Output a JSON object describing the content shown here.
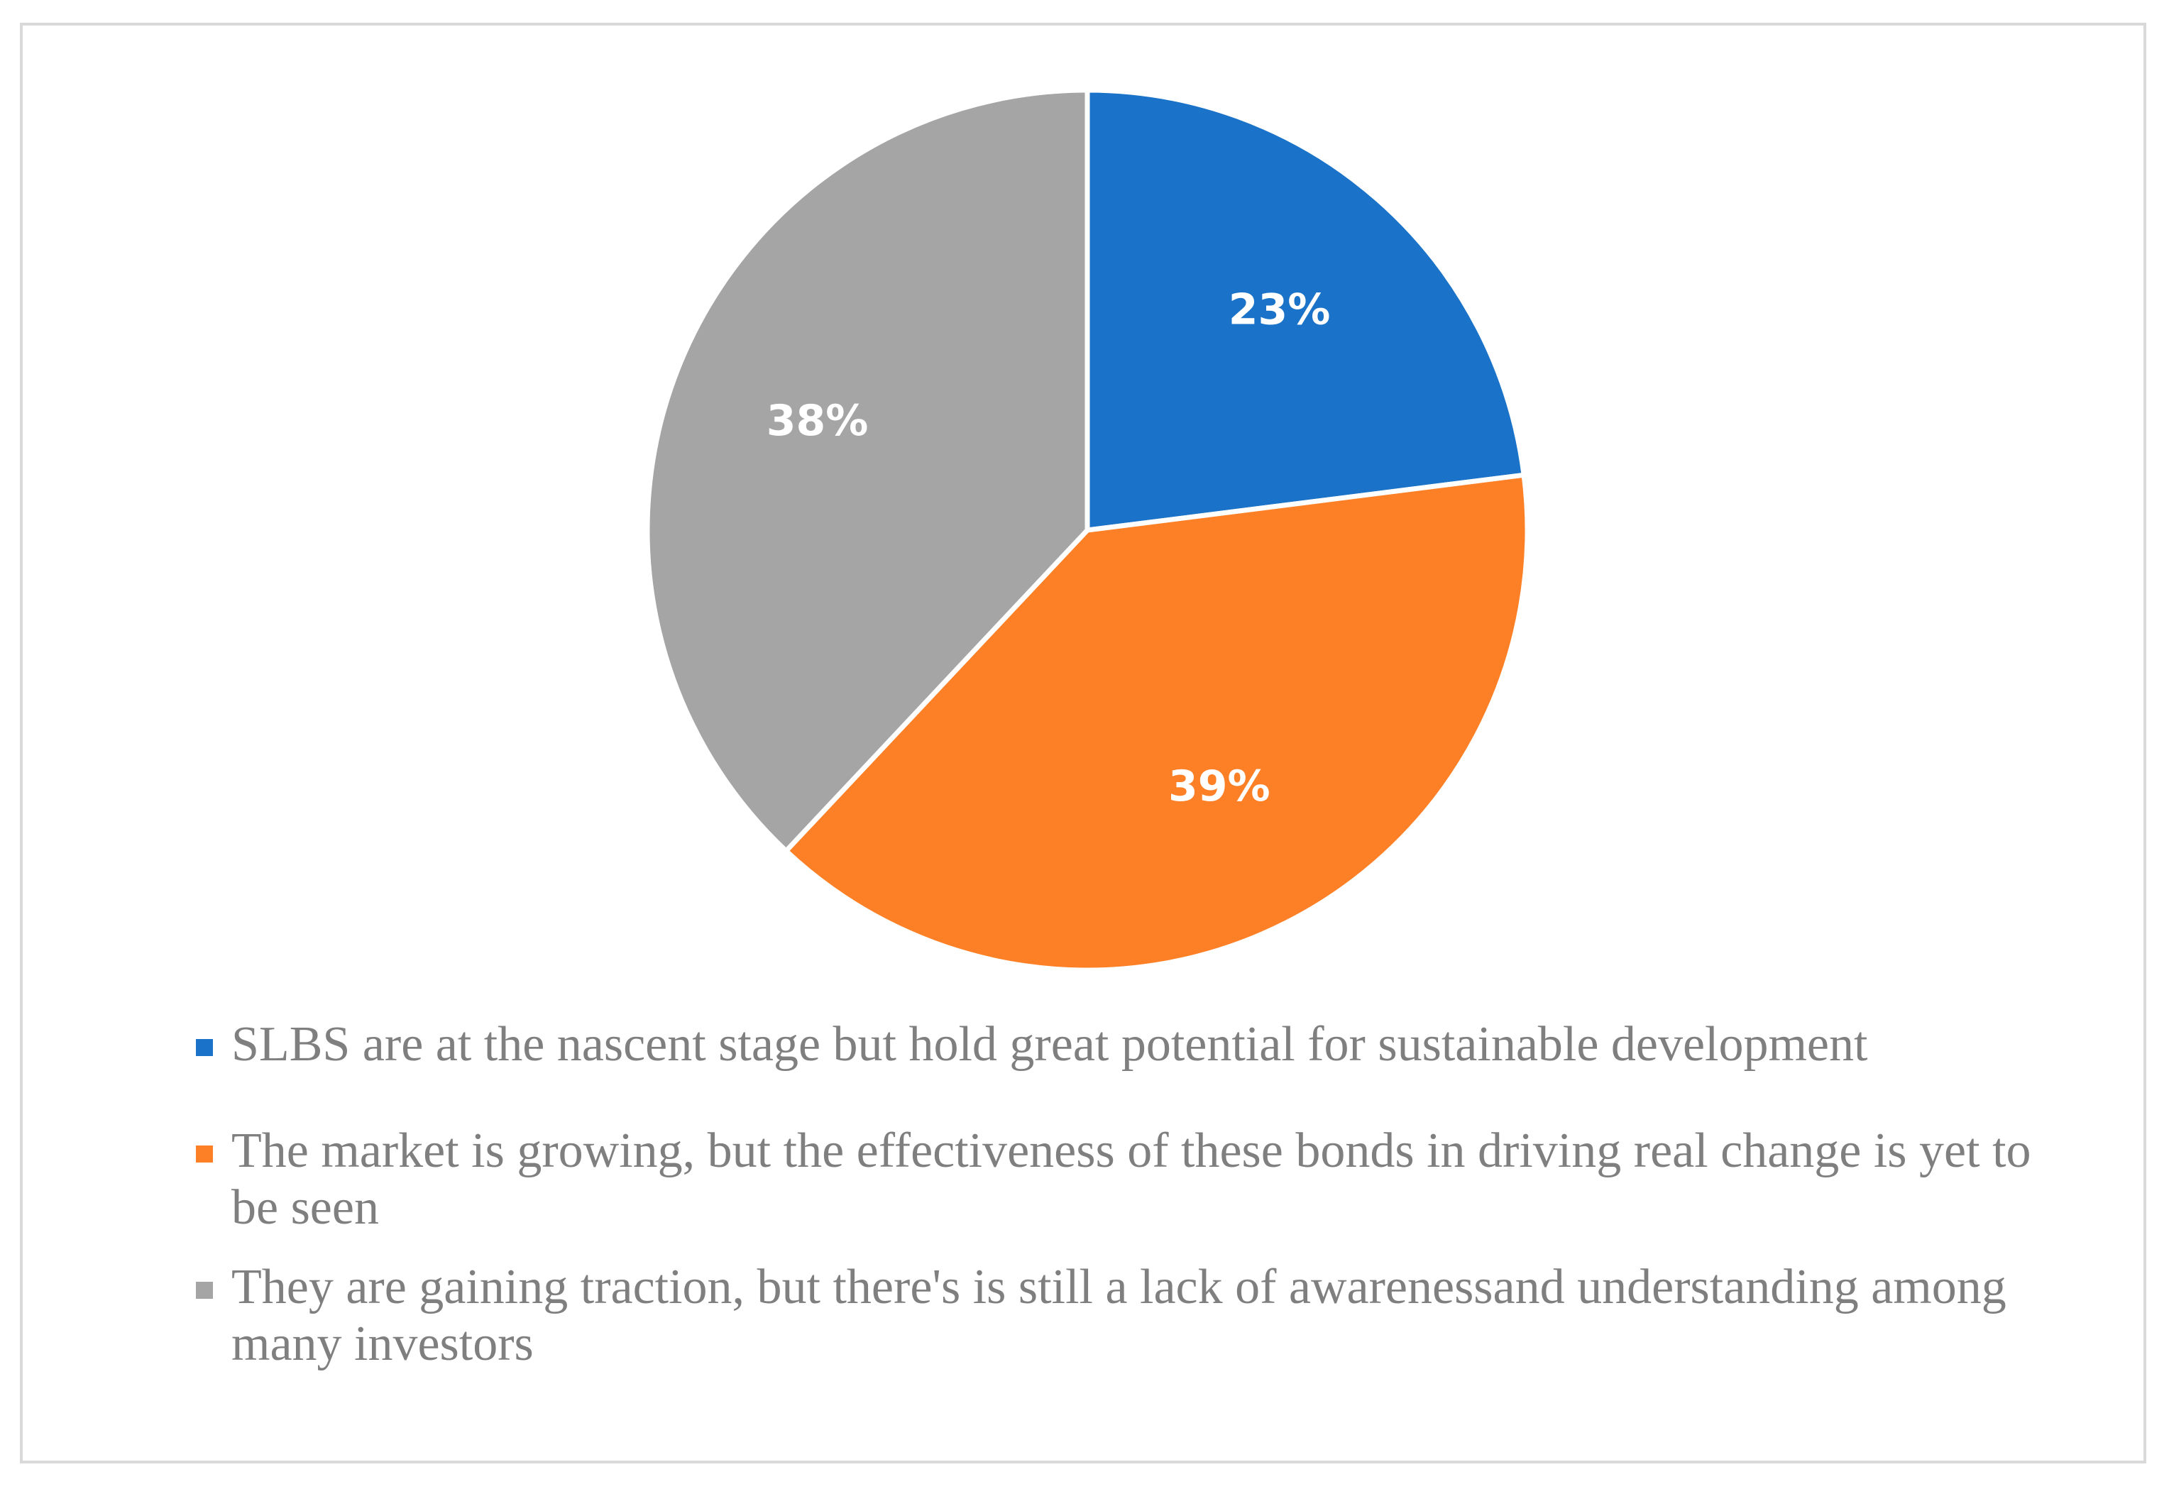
{
  "chart_data": {
    "type": "pie",
    "title": "",
    "legend_position": "bottom",
    "slices": [
      {
        "label": "SLBS are at the nascent stage but hold great potential for sustainable development",
        "value": 23,
        "display": "23%",
        "color": "#1a73c8"
      },
      {
        "label": "The market is growing, but the effectiveness of these bonds in driving real change is yet to be seen",
        "value": 39,
        "display": "39%",
        "color": "#fd8026"
      },
      {
        "label": "They are gaining traction, but there's is still a lack of awarenessand understanding among many investors",
        "value": 38,
        "display": "38%",
        "color": "#a5a5a5"
      }
    ]
  }
}
